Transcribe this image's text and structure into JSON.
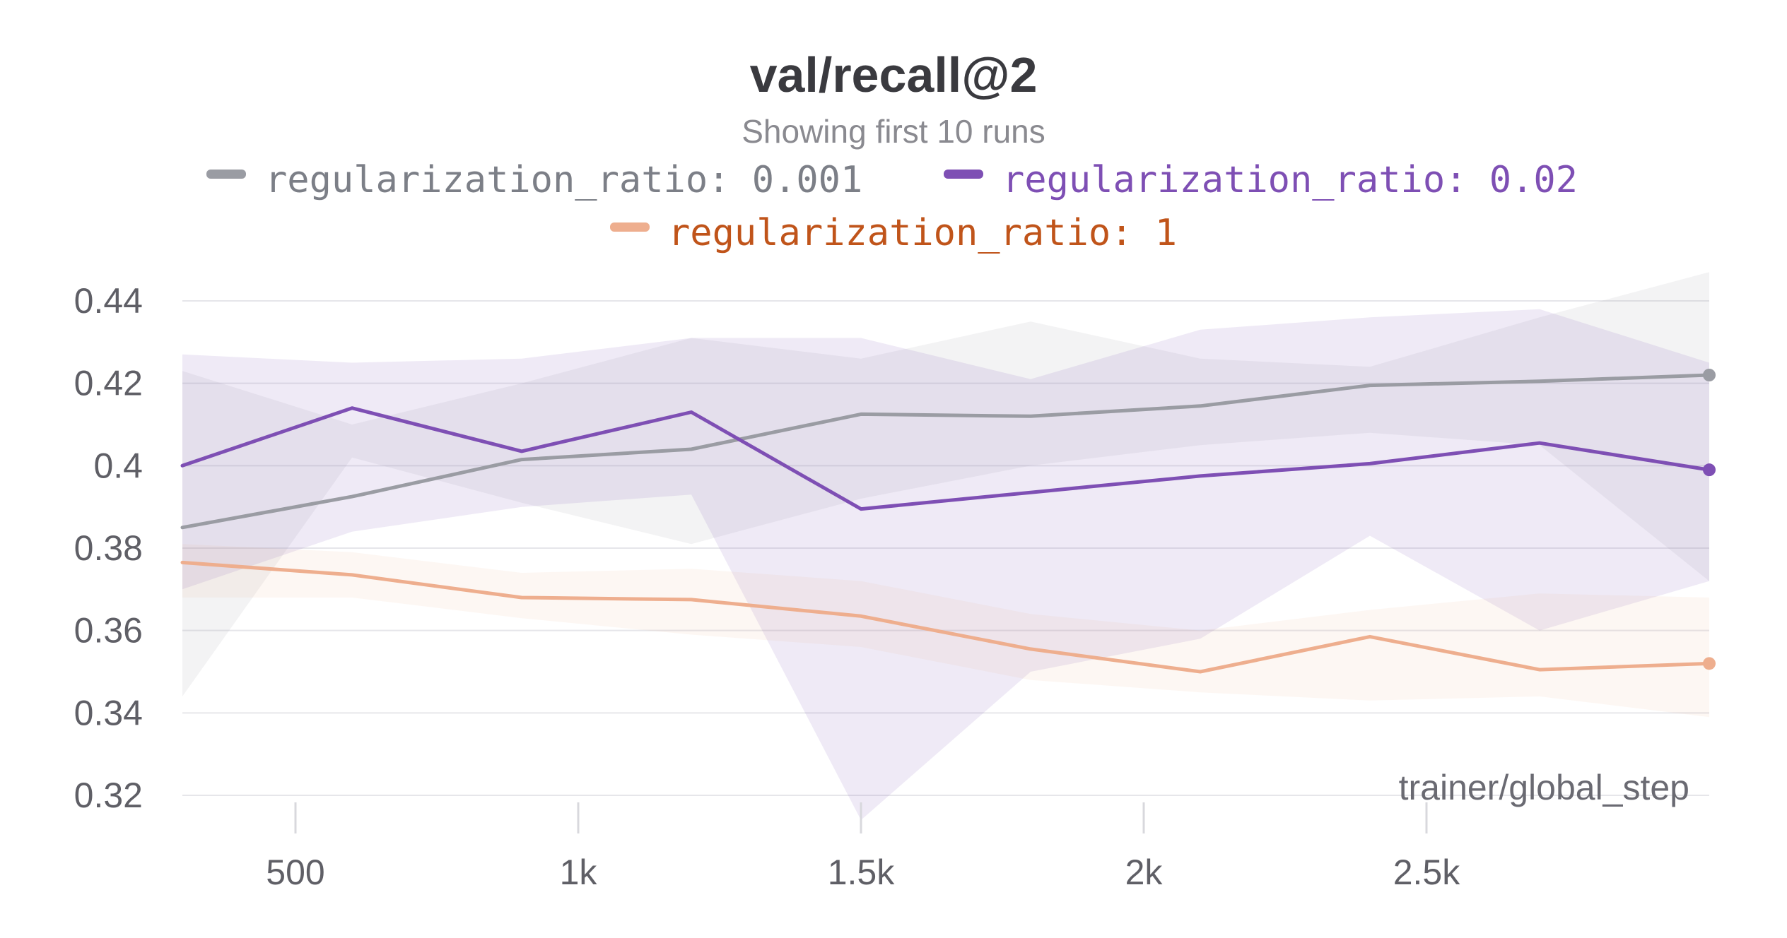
{
  "chart_data": {
    "type": "line",
    "title": "val/recall@2",
    "subtitle": "Showing first 10 runs",
    "xlabel": "trainer/global_step",
    "ylabel": "",
    "xlim": [
      300,
      3000
    ],
    "ylim": [
      0.32,
      0.445
    ],
    "x_ticks": [
      500,
      1000,
      1500,
      2000,
      2500
    ],
    "x_tick_labels": [
      "500",
      "1k",
      "1.5k",
      "2k",
      "2.5k"
    ],
    "y_ticks": [
      0.32,
      0.34,
      0.36,
      0.38,
      0.4,
      0.42,
      0.44
    ],
    "y_tick_labels": [
      "0.32",
      "0.34",
      "0.36",
      "0.38",
      "0.4",
      "0.42",
      "0.44"
    ],
    "grid": true,
    "legend_position": "top-center",
    "x": [
      300,
      600,
      900,
      1200,
      1500,
      1800,
      2100,
      2400,
      2700,
      3000
    ],
    "series": [
      {
        "name": "regularization_ratio: 0.001",
        "color": "#9a9ca3",
        "legend_text_color": "#7c7f87",
        "values": [
          0.385,
          0.3925,
          0.4015,
          0.404,
          0.4125,
          0.412,
          0.4145,
          0.4195,
          0.4205,
          0.422
        ],
        "band_upper": [
          0.423,
          0.41,
          0.42,
          0.431,
          0.426,
          0.435,
          0.426,
          0.424,
          0.436,
          0.447
        ],
        "band_lower": [
          0.344,
          0.402,
          0.391,
          0.381,
          0.392,
          0.4,
          0.405,
          0.408,
          0.405,
          0.372
        ]
      },
      {
        "name": "regularization_ratio: 0.02",
        "color": "#7e4fb4",
        "legend_text_color": "#7e4fb4",
        "values": [
          0.4,
          0.414,
          0.4035,
          0.413,
          0.3895,
          0.3935,
          0.3975,
          0.4005,
          0.4055,
          0.399
        ],
        "band_upper": [
          0.427,
          0.425,
          0.426,
          0.431,
          0.431,
          0.421,
          0.433,
          0.436,
          0.438,
          0.425
        ],
        "band_lower": [
          0.37,
          0.384,
          0.39,
          0.393,
          0.314,
          0.35,
          0.358,
          0.383,
          0.36,
          0.372
        ]
      },
      {
        "name": "regularization_ratio: 1",
        "color": "#eeae8e",
        "legend_text_color": "#c0541a",
        "values": [
          0.3765,
          0.3735,
          0.368,
          0.3675,
          0.3635,
          0.3555,
          0.35,
          0.3585,
          0.3505,
          0.352
        ],
        "band_upper": [
          0.381,
          0.379,
          0.374,
          0.375,
          0.372,
          0.364,
          0.36,
          0.365,
          0.369,
          0.368
        ],
        "band_lower": [
          0.368,
          0.368,
          0.363,
          0.359,
          0.356,
          0.348,
          0.345,
          0.343,
          0.344,
          0.339
        ]
      }
    ]
  }
}
